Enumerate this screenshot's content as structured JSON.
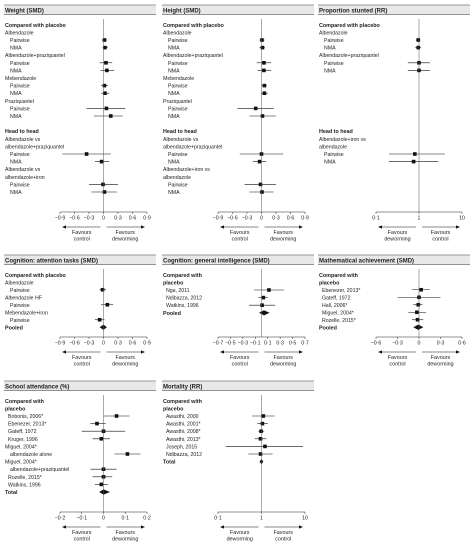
{
  "chart_data": [
    {
      "type": "forest",
      "title": "Weight (SMD)",
      "scale": "linear",
      "xlim": [
        -0.9,
        0.9
      ],
      "ticks": [
        "−0·9",
        "−0·6",
        "−0·3",
        "0",
        "0·3",
        "0·6",
        "0·9"
      ],
      "tick_values": [
        -0.9,
        -0.6,
        -0.3,
        0,
        0.3,
        0.6,
        0.9
      ],
      "favours_left": [
        "Favours",
        "control"
      ],
      "favours_right": [
        "Favours",
        "deworming"
      ],
      "rows": [
        {
          "label": "Compared with placebo",
          "kind": "header"
        },
        {
          "label": "Albendazole",
          "kind": "group"
        },
        {
          "label": "Pairwise",
          "kind": "est",
          "est": 0.02,
          "lo": -0.03,
          "hi": 0.07
        },
        {
          "label": "NMA",
          "kind": "est",
          "est": 0.03,
          "lo": -0.02,
          "hi": 0.09
        },
        {
          "label": "Albendazole+praziquantel",
          "kind": "group"
        },
        {
          "label": "Pairwise",
          "kind": "est",
          "est": 0.05,
          "lo": -0.08,
          "hi": 0.18
        },
        {
          "label": "NMA",
          "kind": "est",
          "est": 0.07,
          "lo": -0.06,
          "hi": 0.22
        },
        {
          "label": "Mebendazole",
          "kind": "group"
        },
        {
          "label": "Pairwise",
          "kind": "est",
          "est": 0.02,
          "lo": -0.05,
          "hi": 0.09
        },
        {
          "label": "NMA",
          "kind": "est",
          "est": 0.03,
          "lo": -0.05,
          "hi": 0.12
        },
        {
          "label": "Praziquantel",
          "kind": "group"
        },
        {
          "label": "Pairwise",
          "kind": "est",
          "est": 0.06,
          "lo": -0.35,
          "hi": 0.45
        },
        {
          "label": "NMA",
          "kind": "est",
          "est": 0.15,
          "lo": -0.2,
          "hi": 0.4
        },
        {
          "label": "",
          "kind": "gap"
        },
        {
          "label": "Head to head",
          "kind": "header"
        },
        {
          "label": "Albendazole vs",
          "kind": "group"
        },
        {
          "label": "albendazole+praziquantel",
          "kind": "group"
        },
        {
          "label": "Pairwise",
          "kind": "est",
          "est": -0.35,
          "lo": -0.85,
          "hi": 0.15
        },
        {
          "label": "NMA",
          "kind": "est",
          "est": -0.04,
          "lo": -0.18,
          "hi": 0.12
        },
        {
          "label": "Albendazole vs",
          "kind": "group"
        },
        {
          "label": "albendazole+iron",
          "kind": "group"
        },
        {
          "label": "Pairwise",
          "kind": "est",
          "est": -0.01,
          "lo": -0.3,
          "hi": 0.3
        },
        {
          "label": "NMA",
          "kind": "est",
          "est": 0.02,
          "lo": -0.25,
          "hi": 0.28
        }
      ]
    },
    {
      "type": "forest",
      "title": "Height (SMD)",
      "scale": "linear",
      "xlim": [
        -0.9,
        0.9
      ],
      "ticks": [
        "−0·9",
        "−0·6",
        "−0·3",
        "0",
        "0·3",
        "0·6",
        "0·9"
      ],
      "tick_values": [
        -0.9,
        -0.6,
        -0.3,
        0,
        0.3,
        0.6,
        0.9
      ],
      "favours_left": [
        "Favours",
        "control"
      ],
      "favours_right": [
        "Favours",
        "deworming"
      ],
      "rows": [
        {
          "label": "Compared with placebo",
          "kind": "header"
        },
        {
          "label": "Albendazole",
          "kind": "group"
        },
        {
          "label": "Pairwise",
          "kind": "est",
          "est": 0.01,
          "lo": -0.04,
          "hi": 0.06
        },
        {
          "label": "NMA",
          "kind": "est",
          "est": 0.02,
          "lo": -0.04,
          "hi": 0.07
        },
        {
          "label": "Albendazole+praziquantel",
          "kind": "group"
        },
        {
          "label": "Pairwise",
          "kind": "est",
          "est": 0.05,
          "lo": -0.1,
          "hi": 0.2
        },
        {
          "label": "NMA",
          "kind": "est",
          "est": 0.05,
          "lo": -0.08,
          "hi": 0.2
        },
        {
          "label": "Mebendazole",
          "kind": "group"
        },
        {
          "label": "Pairwise",
          "kind": "est",
          "est": 0.06,
          "lo": 0.0,
          "hi": 0.11
        },
        {
          "label": "NMA",
          "kind": "est",
          "est": 0.06,
          "lo": -0.01,
          "hi": 0.13
        },
        {
          "label": "Praziquantel",
          "kind": "group"
        },
        {
          "label": "Pairwise",
          "kind": "est",
          "est": -0.12,
          "lo": -0.5,
          "hi": 0.25
        },
        {
          "label": "NMA",
          "kind": "est",
          "est": 0.02,
          "lo": -0.25,
          "hi": 0.3
        },
        {
          "label": "",
          "kind": "gap"
        },
        {
          "label": "Head to head",
          "kind": "header"
        },
        {
          "label": "Albendazole vs",
          "kind": "group"
        },
        {
          "label": "albendazole+praziquantel",
          "kind": "group"
        },
        {
          "label": "Pairwise",
          "kind": "est",
          "est": 0.0,
          "lo": -0.45,
          "hi": 0.45
        },
        {
          "label": "NMA",
          "kind": "est",
          "est": -0.04,
          "lo": -0.18,
          "hi": 0.1
        },
        {
          "label": "Albendazole+iron vs",
          "kind": "group"
        },
        {
          "label": "albendazole",
          "kind": "group"
        },
        {
          "label": "Pairwise",
          "kind": "est",
          "est": -0.02,
          "lo": -0.35,
          "hi": 0.3
        },
        {
          "label": "NMA",
          "kind": "est",
          "est": 0.01,
          "lo": -0.25,
          "hi": 0.25
        }
      ]
    },
    {
      "type": "forest",
      "title": "Proportion stunted (RR)",
      "scale": "log",
      "xlim": [
        0.1,
        10
      ],
      "ticks": [
        "0·1",
        "1",
        "10"
      ],
      "tick_values": [
        0.1,
        1,
        10
      ],
      "favours_left": [
        "Favours",
        "deworming"
      ],
      "favours_right": [
        "Favours",
        "control"
      ],
      "rows": [
        {
          "label": "Compared with placebo",
          "kind": "header"
        },
        {
          "label": "Albendazole",
          "kind": "group"
        },
        {
          "label": "Pairwise",
          "kind": "est",
          "est": 0.96,
          "lo": 0.85,
          "hi": 1.08
        },
        {
          "label": "NMA",
          "kind": "est",
          "est": 0.96,
          "lo": 0.82,
          "hi": 1.12
        },
        {
          "label": "Albendazole+praziquantel",
          "kind": "group"
        },
        {
          "label": "Pairwise",
          "kind": "est",
          "est": 1.0,
          "lo": 0.55,
          "hi": 1.8
        },
        {
          "label": "NMA",
          "kind": "est",
          "est": 1.0,
          "lo": 0.55,
          "hi": 1.8
        },
        {
          "label": "",
          "kind": "gap"
        },
        {
          "label": "",
          "kind": "gap"
        },
        {
          "label": "",
          "kind": "gap"
        },
        {
          "label": "",
          "kind": "gap"
        },
        {
          "label": "",
          "kind": "gap"
        },
        {
          "label": "",
          "kind": "gap"
        },
        {
          "label": "",
          "kind": "gap"
        },
        {
          "label": "Head to head",
          "kind": "header"
        },
        {
          "label": "Albendazole+iron vs",
          "kind": "group"
        },
        {
          "label": "albendazole",
          "kind": "group"
        },
        {
          "label": "Pairwise",
          "kind": "est",
          "est": 0.8,
          "lo": 0.2,
          "hi": 4.0
        },
        {
          "label": "NMA",
          "kind": "est",
          "est": 0.75,
          "lo": 0.2,
          "hi": 2.8
        }
      ]
    },
    {
      "type": "forest",
      "title": "Cognition: attention tasks (SMD)",
      "scale": "linear",
      "xlim": [
        -0.9,
        0.9
      ],
      "ticks": [
        "−0·9",
        "−0·6",
        "−0·3",
        "0",
        "0·3",
        "0·6",
        "0·9"
      ],
      "tick_values": [
        -0.9,
        -0.6,
        -0.3,
        0,
        0.3,
        0.6,
        0.9
      ],
      "favours_left": [
        "Favours",
        "control"
      ],
      "favours_right": [
        "Favours",
        "deworming"
      ],
      "rows": [
        {
          "label": "Compared with  placebo",
          "kind": "header"
        },
        {
          "label": "Albendazole",
          "kind": "group"
        },
        {
          "label": "Pairwise",
          "kind": "est",
          "est": -0.02,
          "lo": -0.08,
          "hi": 0.05
        },
        {
          "label": "Albendazole HF",
          "kind": "group"
        },
        {
          "label": "Pairwise",
          "kind": "est",
          "est": 0.08,
          "lo": -0.05,
          "hi": 0.2
        },
        {
          "label": "Mebendazole+iron",
          "kind": "group"
        },
        {
          "label": "Pairwise",
          "kind": "est",
          "est": -0.08,
          "lo": -0.18,
          "hi": 0.02
        },
        {
          "label": "Pooled",
          "kind": "pooled",
          "est": 0.0,
          "lo": -0.08,
          "hi": 0.07
        }
      ]
    },
    {
      "type": "forest",
      "title": "Cognition: general intelligence (SMD)",
      "scale": "linear",
      "xlim": [
        -0.7,
        0.7
      ],
      "ticks": [
        "−0·7",
        "−0·5",
        "−0·3",
        "−0·1",
        "0·1",
        "0·3",
        "0·5",
        "0·7"
      ],
      "tick_values": [
        -0.7,
        -0.5,
        -0.3,
        -0.1,
        0.1,
        0.3,
        0.5,
        0.7
      ],
      "favours_left": [
        "Favours",
        "control"
      ],
      "favours_right": [
        "Favours",
        "deworming"
      ],
      "rows": [
        {
          "label": "Compared with",
          "kind": "header"
        },
        {
          "label": "placebo",
          "kind": "header"
        },
        {
          "label": "Nga, 2011",
          "kind": "est",
          "est": 0.12,
          "lo": -0.12,
          "hi": 0.36
        },
        {
          "label": "Ndibazza, 2012",
          "kind": "est",
          "est": 0.03,
          "lo": -0.05,
          "hi": 0.1
        },
        {
          "label": "Watkins, 1996",
          "kind": "est",
          "est": 0.01,
          "lo": -0.2,
          "hi": 0.22
        },
        {
          "label": "Pooled",
          "kind": "pooled",
          "est": 0.04,
          "lo": -0.04,
          "hi": 0.13
        }
      ]
    },
    {
      "type": "forest",
      "title": "Mathematical achievement (SMD)",
      "scale": "linear",
      "xlim": [
        -0.6,
        0.6
      ],
      "ticks": [
        "−0·6",
        "−0·3",
        "0",
        "0·3",
        "0·6"
      ],
      "tick_values": [
        -0.6,
        -0.3,
        0,
        0.3,
        0.6
      ],
      "favours_left": [
        "Favours",
        "control"
      ],
      "favours_right": [
        "Favours",
        "deworming"
      ],
      "rows": [
        {
          "label": "Compared with",
          "kind": "header"
        },
        {
          "label": "placebo",
          "kind": "header"
        },
        {
          "label": "Ebenezer, 2013*",
          "kind": "est",
          "est": 0.03,
          "lo": -0.1,
          "hi": 0.15
        },
        {
          "label": "Gateff, 1972",
          "kind": "est",
          "est": 0.0,
          "lo": -0.3,
          "hi": 0.3
        },
        {
          "label": "Hall, 2006*",
          "kind": "est",
          "est": -0.01,
          "lo": -0.08,
          "hi": 0.05
        },
        {
          "label": "Miguel, 2004*",
          "kind": "est",
          "est": -0.03,
          "lo": -0.15,
          "hi": 0.1
        },
        {
          "label": "Rozelle, 2015*",
          "kind": "est",
          "est": -0.02,
          "lo": -0.1,
          "hi": 0.06
        },
        {
          "label": "Pooled",
          "kind": "pooled",
          "est": -0.01,
          "lo": -0.08,
          "hi": 0.06
        }
      ]
    },
    {
      "type": "forest",
      "title": "School attendance (%)",
      "scale": "linear",
      "xlim": [
        -0.2,
        0.2
      ],
      "ticks": [
        "−0·2",
        "−0·1",
        "0",
        "0·1",
        "0·2"
      ],
      "tick_values": [
        -0.2,
        -0.1,
        0,
        0.1,
        0.2
      ],
      "favours_left": [
        "Favours",
        "control"
      ],
      "favours_right": [
        "Favours",
        "deworming"
      ],
      "rows": [
        {
          "label": "Compared with",
          "kind": "header"
        },
        {
          "label": "placebo",
          "kind": "header"
        },
        {
          "label": "Bobonis, 2006*",
          "kind": "est",
          "est": 0.06,
          "lo": 0.0,
          "hi": 0.12
        },
        {
          "label": "Ebenezer, 2013*",
          "kind": "est",
          "est": -0.03,
          "lo": -0.06,
          "hi": 0.01
        },
        {
          "label": "Gateff, 1972",
          "kind": "est",
          "est": 0.0,
          "lo": -0.1,
          "hi": 0.1
        },
        {
          "label": "Kruger, 1996",
          "kind": "est",
          "est": -0.01,
          "lo": -0.05,
          "hi": 0.03
        },
        {
          "label": "Miguel, 2004*",
          "kind": "group"
        },
        {
          "label": "albendazole alone",
          "kind": "est",
          "est": 0.11,
          "lo": 0.05,
          "hi": 0.17
        },
        {
          "label": "Miguel, 2004*",
          "kind": "group"
        },
        {
          "label": "albendazole+praziquantel",
          "kind": "est",
          "est": 0.0,
          "lo": -0.06,
          "hi": 0.06
        },
        {
          "label": "Rozelle, 2015*",
          "kind": "est",
          "est": 0.0,
          "lo": -0.05,
          "hi": 0.04
        },
        {
          "label": "Watkins, 1996",
          "kind": "est",
          "est": -0.01,
          "lo": -0.04,
          "hi": 0.02
        },
        {
          "label": "Total",
          "kind": "pooled",
          "est": 0.0,
          "lo": -0.02,
          "hi": 0.03
        }
      ]
    },
    {
      "type": "forest",
      "title": "Mortality (RR)",
      "scale": "log",
      "xlim": [
        0.1,
        10
      ],
      "ticks": [
        "0·1",
        "1",
        "10"
      ],
      "tick_values": [
        0.1,
        1,
        10
      ],
      "favours_left": [
        "Favours",
        "deworming"
      ],
      "favours_right": [
        "Favours",
        "control"
      ],
      "rows": [
        {
          "label": "Compared with",
          "kind": "header"
        },
        {
          "label": "placebo",
          "kind": "header"
        },
        {
          "label": "Awasthi, 2000",
          "kind": "est",
          "est": 1.1,
          "lo": 0.6,
          "hi": 2.0
        },
        {
          "label": "Awasthi, 2001*",
          "kind": "est",
          "est": 1.05,
          "lo": 0.8,
          "hi": 1.4
        },
        {
          "label": "Awasthi, 2008*",
          "kind": "est",
          "est": 0.98,
          "lo": 0.85,
          "hi": 1.15
        },
        {
          "label": "Awasthi, 2013*",
          "kind": "est",
          "est": 0.95,
          "lo": 0.7,
          "hi": 1.3
        },
        {
          "label": "Joseph, 2015",
          "kind": "est",
          "est": 1.2,
          "lo": 0.15,
          "hi": 9.0
        },
        {
          "label": "Ndibazza, 2012",
          "kind": "est",
          "est": 0.95,
          "lo": 0.5,
          "hi": 1.8
        },
        {
          "label": "Total",
          "kind": "pooled",
          "est": 1.0,
          "lo": 0.9,
          "hi": 1.1
        }
      ]
    }
  ]
}
